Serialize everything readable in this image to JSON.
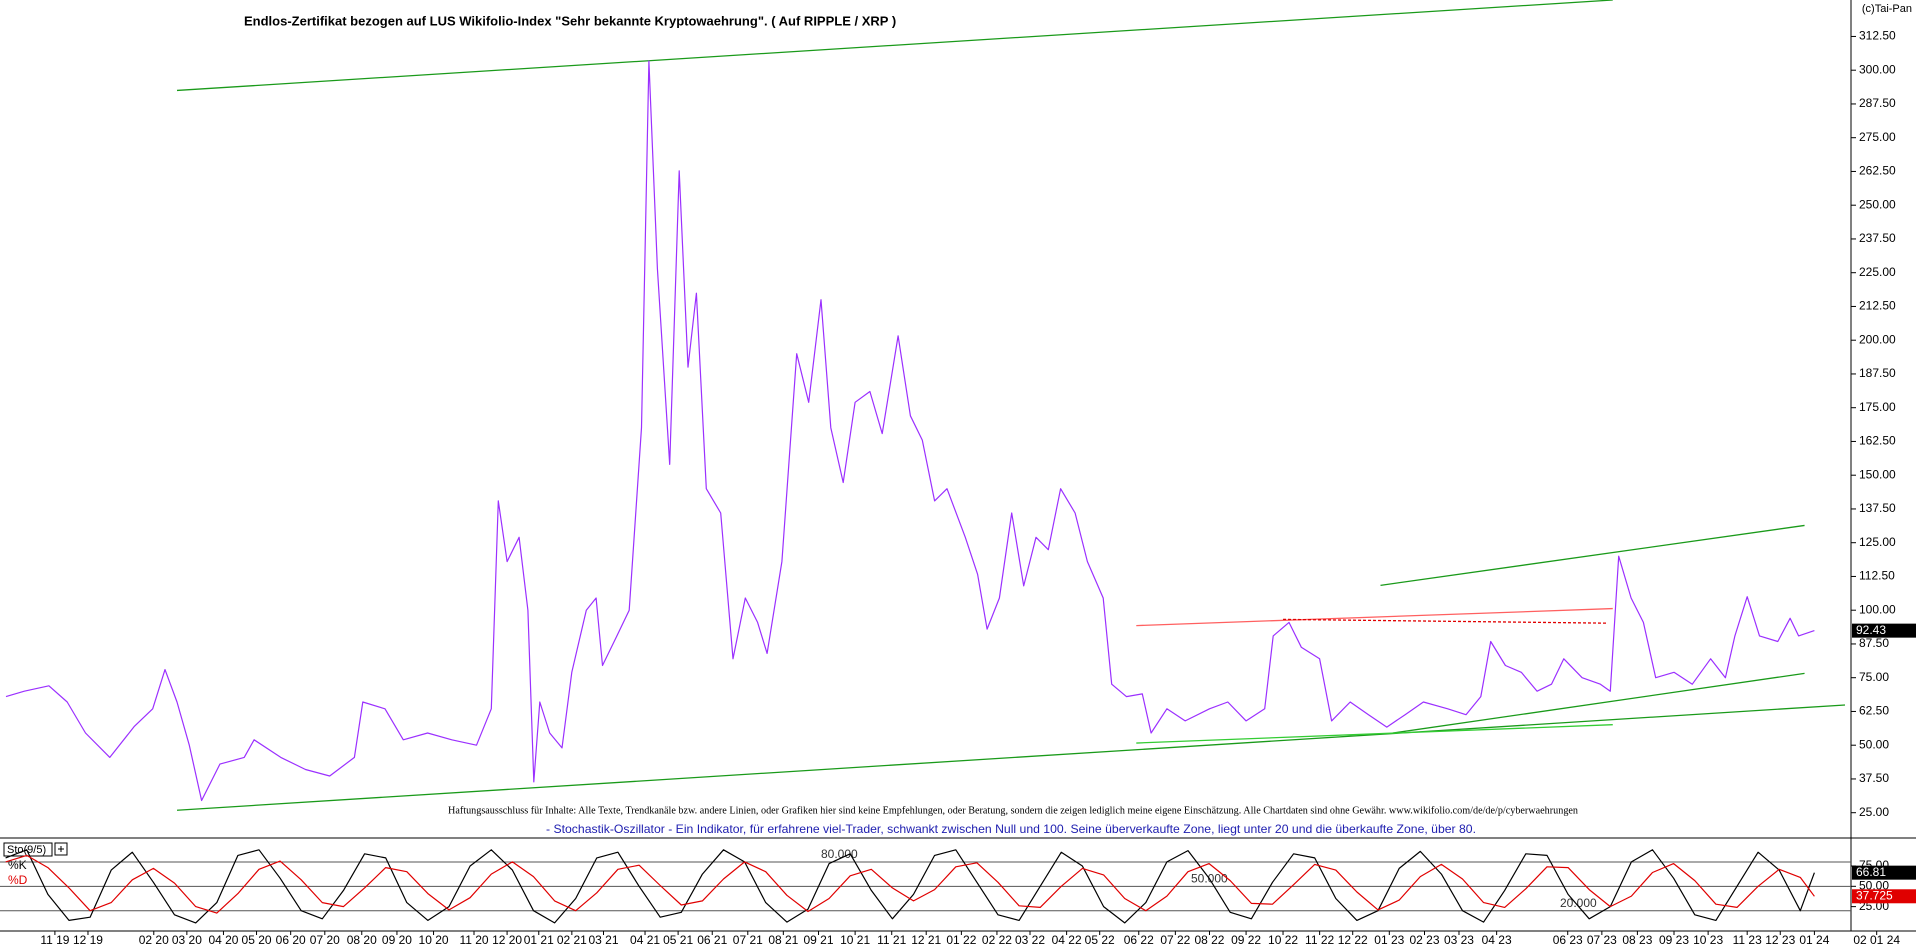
{
  "chart_data": [
    {
      "type": "line",
      "title": "Endlos-Zertifikat bezogen auf LUS Wikifolio-Index \"Sehr bekannte Kryptowaehrung\". ( Auf RIPPLE / XRP )",
      "copyright": "(c)Tai-Pan",
      "disclaimer": "Haftungsausschluss für Inhalte: Alle Texte, Trendkanäle bzw. andere Linien, oder Grafiken hier sind keine Empfehlungen, oder Beratung, sondern die zeigen lediglich meine eigene Einschätzung. Alle Chartdaten sind ohne Gewähr.  www.wikifolio.com/de/de/p/cyberwaehrungen",
      "indicator_note": "- Stochastik-Oszillator - Ein Indikator, für erfahrene viel-Trader, schwankt zwischen Null und 100. Seine überverkaufte Zone, liegt unter 20 und die überkaufte Zone, über 80.",
      "x": [
        -1.39,
        -0.87,
        -0.17,
        0.35,
        0.87,
        1.56,
        2.26,
        2.78,
        3.13,
        3.47,
        3.82,
        4.17,
        4.69,
        5.38,
        5.66,
        6.42,
        7.12,
        7.81,
        8.51,
        8.75,
        9.38,
        9.9,
        10.59,
        11.28,
        11.98,
        12.4,
        12.6,
        12.85,
        13.19,
        13.44,
        13.61,
        13.78,
        14.06,
        14.41,
        14.69,
        15.1,
        15.38,
        15.56,
        15.97,
        16.32,
        16.67,
        16.88,
        17.12,
        17.47,
        17.74,
        17.99,
        18.23,
        18.51,
        18.92,
        19.27,
        19.62,
        19.97,
        20.24,
        20.66,
        21.08,
        21.42,
        21.77,
        22.05,
        22.4,
        22.74,
        23.16,
        23.51,
        23.96,
        24.31,
        24.65,
        25.0,
        25.35,
        25.87,
        26.22,
        26.49,
        26.84,
        27.19,
        27.53,
        27.88,
        28.23,
        28.58,
        28.99,
        29.34,
        29.79,
        30.03,
        30.45,
        30.9,
        31.15,
        31.6,
        32.12,
        32.81,
        33.33,
        33.85,
        34.38,
        34.62,
        35.07,
        35.42,
        35.94,
        36.28,
        36.81,
        37.33,
        37.85,
        38.37,
        38.89,
        39.58,
        40.1,
        40.52,
        40.8,
        41.22,
        41.67,
        42.12,
        42.53,
        42.88,
        43.4,
        43.92,
        44.2,
        44.44,
        44.79,
        45.14,
        45.49,
        46.01,
        46.53,
        47.05,
        47.47,
        47.74,
        48.09,
        48.44,
        48.96,
        49.31,
        49.55,
        50.0
      ],
      "series": [
        {
          "color": "#9b30ff",
          "values": [
            68,
            70,
            72,
            66,
            54.5,
            45.5,
            57,
            63.5,
            78,
            66,
            50,
            29.5,
            43,
            45.5,
            52,
            45.5,
            41,
            38.6,
            45.5,
            66,
            63.5,
            52,
            54.5,
            52,
            50,
            63.5,
            140.5,
            118,
            127,
            100,
            36.4,
            66,
            54.5,
            49,
            77,
            100,
            104.5,
            79.5,
            90.5,
            100,
            167.6,
            303.4,
            226.5,
            154,
            262.7,
            190,
            217.4,
            145,
            136,
            82,
            104.5,
            95.5,
            84,
            118,
            195,
            177,
            215,
            167.6,
            147.3,
            177,
            181,
            165.4,
            201.6,
            172,
            163,
            140.5,
            145,
            127,
            113.3,
            93,
            104.5,
            136,
            109,
            127,
            122.4,
            145,
            136,
            118,
            104.5,
            72.6,
            68,
            69,
            54.5,
            63.5,
            59,
            63.5,
            66,
            59,
            63.5,
            90.5,
            95.5,
            86.3,
            82,
            59,
            66,
            61.3,
            56.7,
            61.3,
            66,
            63.5,
            61.3,
            68,
            88.4,
            79.5,
            77,
            70,
            72.6,
            82,
            75,
            72.6,
            70,
            120,
            104.5,
            95.5,
            75,
            77,
            72.6,
            82,
            75,
            90.5,
            105,
            90.5,
            88.4,
            97,
            90.5,
            92.43
          ]
        }
      ],
      "xlim": [
        -1.56,
        51.04
      ],
      "ylim": [
        16,
        326
      ],
      "yticks": [
        {
          "value": 25,
          "label": "25.00"
        },
        {
          "value": 37.5,
          "label": "37.50"
        },
        {
          "value": 50,
          "label": "50.00"
        },
        {
          "value": 62.5,
          "label": "62.50"
        },
        {
          "value": 75,
          "label": "75.00"
        },
        {
          "value": 87.5,
          "label": "87.50"
        },
        {
          "value": 100,
          "label": "100.00"
        },
        {
          "value": 112.5,
          "label": "112.50"
        },
        {
          "value": 125,
          "label": "125.00"
        },
        {
          "value": 137.5,
          "label": "137.50"
        },
        {
          "value": 150,
          "label": "150.00"
        },
        {
          "value": 162.5,
          "label": "162.50"
        },
        {
          "value": 175,
          "label": "175.00"
        },
        {
          "value": 187.5,
          "label": "187.50"
        },
        {
          "value": 200,
          "label": "200.00"
        },
        {
          "value": 212.5,
          "label": "212.50"
        },
        {
          "value": 225,
          "label": "225.00"
        },
        {
          "value": 237.5,
          "label": "237.50"
        },
        {
          "value": 250,
          "label": "250.00"
        },
        {
          "value": 262.5,
          "label": "262.50"
        },
        {
          "value": 275,
          "label": "275.00"
        },
        {
          "value": 287.5,
          "label": "287.50"
        },
        {
          "value": 300,
          "label": "300.00"
        },
        {
          "value": 312.5,
          "label": "312.50"
        }
      ],
      "trendlines": [
        {
          "color": "#1a9a1a",
          "x": [
            3.47,
            44.27
          ],
          "y": [
            292.5,
            326
          ]
        },
        {
          "color": "#1a9a1a",
          "x": [
            3.47,
            50.87
          ],
          "y": [
            25.9,
            64.9
          ]
        },
        {
          "color": "#1a9a1a",
          "x": [
            37.67,
            49.72
          ],
          "y": [
            109.2,
            131.4
          ]
        },
        {
          "color": "#1a9a1a",
          "x": [
            38.02,
            49.72
          ],
          "y": [
            54.5,
            76.6
          ]
        },
        {
          "color": "#33cc33",
          "x": [
            30.73,
            44.27
          ],
          "y": [
            50.8,
            57.6
          ]
        },
        {
          "color": "#ff6060",
          "x": [
            30.73,
            44.27
          ],
          "y": [
            94.3,
            100.6
          ]
        },
        {
          "color": "#e00000",
          "dash": true,
          "x": [
            34.9,
            44.1
          ],
          "y": [
            96.6,
            95.2
          ]
        }
      ]
    },
    {
      "type": "line",
      "indicator": "Sto(9/5)",
      "x": [
        -1.4,
        -0.8,
        -0.2,
        0.4,
        1.0,
        1.6,
        2.2,
        2.8,
        3.4,
        4.0,
        4.6,
        5.2,
        5.8,
        6.4,
        7.0,
        7.6,
        8.2,
        8.8,
        9.4,
        10.0,
        10.6,
        11.2,
        11.8,
        12.4,
        13.0,
        13.6,
        14.2,
        14.8,
        15.4,
        16.0,
        16.6,
        17.2,
        17.8,
        18.4,
        19.0,
        19.6,
        20.2,
        20.8,
        21.4,
        22.0,
        22.6,
        23.2,
        23.8,
        24.4,
        25.0,
        25.6,
        26.2,
        26.8,
        27.4,
        28.0,
        28.6,
        29.2,
        29.8,
        30.4,
        31.0,
        31.6,
        32.2,
        32.8,
        33.4,
        34.0,
        34.6,
        35.2,
        35.8,
        36.4,
        37.0,
        37.6,
        38.2,
        38.8,
        39.4,
        40.0,
        40.6,
        41.2,
        41.8,
        42.4,
        43.0,
        43.6,
        44.2,
        44.8,
        45.4,
        46.0,
        46.6,
        47.2,
        47.8,
        48.4,
        49.0,
        49.6,
        50.0
      ],
      "series": [
        {
          "name": "%K",
          "color": "#000000",
          "values": [
            85,
            95,
            40,
            8,
            12,
            70,
            92,
            55,
            15,
            5,
            30,
            88,
            95,
            60,
            20,
            10,
            45,
            90,
            85,
            30,
            8,
            25,
            75,
            95,
            70,
            20,
            5,
            35,
            85,
            92,
            50,
            12,
            18,
            65,
            95,
            80,
            30,
            6,
            22,
            78,
            90,
            45,
            10,
            40,
            88,
            95,
            55,
            15,
            8,
            50,
            92,
            75,
            25,
            5,
            30,
            80,
            94,
            60,
            18,
            10,
            55,
            90,
            85,
            35,
            8,
            20,
            72,
            93,
            65,
            20,
            6,
            45,
            90,
            88,
            40,
            10,
            25,
            80,
            95,
            60,
            15,
            8,
            50,
            92,
            70,
            20,
            66.81
          ]
        },
        {
          "name": "%D",
          "color": "#e00000",
          "values": [
            80,
            88,
            73,
            48,
            20,
            30,
            58,
            72,
            54,
            25,
            17,
            41,
            71,
            81,
            58,
            30,
            25,
            48,
            73,
            68,
            41,
            21,
            36,
            65,
            80,
            62,
            32,
            20,
            42,
            71,
            76,
            51,
            27,
            32,
            59,
            80,
            68,
            39,
            19,
            35,
            63,
            71,
            48,
            32,
            46,
            74,
            79,
            55,
            26,
            24,
            50,
            72,
            64,
            35,
            20,
            38,
            68,
            78,
            57,
            29,
            28,
            52,
            77,
            70,
            43,
            21,
            33,
            62,
            77,
            59,
            30,
            24,
            47,
            74,
            73,
            46,
            25,
            38,
            67,
            78,
            57,
            28,
            24,
            50,
            71,
            61,
            37.725
          ]
        }
      ],
      "xlim": [
        -1.56,
        51.04
      ],
      "ylim": [
        -5,
        107
      ],
      "yticks": [
        {
          "value": 25,
          "label": "25.00"
        },
        {
          "value": 50,
          "label": "50.00"
        },
        {
          "value": 75,
          "label": "75.00"
        }
      ],
      "levels": [
        {
          "value": 80,
          "label": "80.000"
        },
        {
          "value": 50,
          "label": "50.000"
        },
        {
          "value": 20,
          "label": "20.000"
        }
      ],
      "xticks": [
        {
          "value": 0,
          "label": "11 19"
        },
        {
          "value": 0.94,
          "label": "12 19"
        },
        {
          "value": 2.81,
          "label": "02 20"
        },
        {
          "value": 3.75,
          "label": "03 20"
        },
        {
          "value": 4.79,
          "label": "04 20"
        },
        {
          "value": 5.73,
          "label": "05 20"
        },
        {
          "value": 6.7,
          "label": "06 20"
        },
        {
          "value": 7.67,
          "label": "07 20"
        },
        {
          "value": 8.72,
          "label": "08 20"
        },
        {
          "value": 9.72,
          "label": "09 20"
        },
        {
          "value": 10.76,
          "label": "10 20"
        },
        {
          "value": 11.91,
          "label": "11 20"
        },
        {
          "value": 12.85,
          "label": "12 20"
        },
        {
          "value": 13.75,
          "label": "01 21"
        },
        {
          "value": 14.69,
          "label": "02 21"
        },
        {
          "value": 15.59,
          "label": "03 21"
        },
        {
          "value": 16.77,
          "label": "04 21"
        },
        {
          "value": 17.71,
          "label": "05 21"
        },
        {
          "value": 18.68,
          "label": "06 21"
        },
        {
          "value": 19.69,
          "label": "07 21"
        },
        {
          "value": 20.7,
          "label": "08 21"
        },
        {
          "value": 21.7,
          "label": "09 21"
        },
        {
          "value": 22.74,
          "label": "10 21"
        },
        {
          "value": 23.78,
          "label": "11 21"
        },
        {
          "value": 24.76,
          "label": "12 21"
        },
        {
          "value": 25.76,
          "label": "01 22"
        },
        {
          "value": 26.77,
          "label": "02 22"
        },
        {
          "value": 27.71,
          "label": "03 22"
        },
        {
          "value": 28.75,
          "label": "04 22"
        },
        {
          "value": 29.69,
          "label": "05 22"
        },
        {
          "value": 30.8,
          "label": "06 22"
        },
        {
          "value": 31.84,
          "label": "07 22"
        },
        {
          "value": 32.81,
          "label": "08 22"
        },
        {
          "value": 33.85,
          "label": "09 22"
        },
        {
          "value": 34.9,
          "label": "10 22"
        },
        {
          "value": 35.94,
          "label": "11 22"
        },
        {
          "value": 36.88,
          "label": "12 22"
        },
        {
          "value": 37.92,
          "label": "01 23"
        },
        {
          "value": 38.92,
          "label": "02 23"
        },
        {
          "value": 39.9,
          "label": "03 23"
        },
        {
          "value": 40.97,
          "label": "04 23"
        },
        {
          "value": 42.99,
          "label": "06 23"
        },
        {
          "value": 43.96,
          "label": "07 23"
        },
        {
          "value": 44.97,
          "label": "08 23"
        },
        {
          "value": 46.01,
          "label": "09 23"
        },
        {
          "value": 46.98,
          "label": "10 23"
        },
        {
          "value": 48.09,
          "label": "11 23"
        },
        {
          "value": 49.03,
          "label": "12 23"
        },
        {
          "value": 50.0,
          "label": "01 24"
        },
        {
          "value": 51.77,
          "label": "02 01 24"
        }
      ]
    }
  ]
}
